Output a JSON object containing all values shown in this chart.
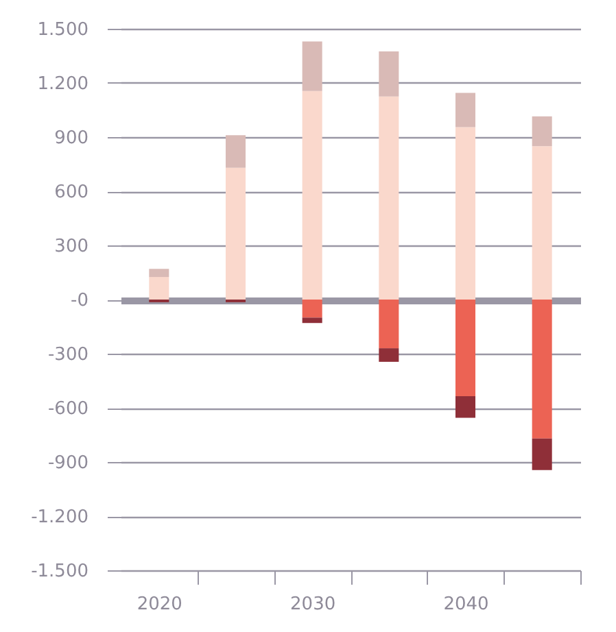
{
  "chart_data": {
    "type": "bar",
    "stacked": true,
    "categories": [
      "2020",
      null,
      "2030",
      null,
      "2040",
      null
    ],
    "series": [
      {
        "color": "#fad8cc",
        "values": [
          125,
          730,
          1155,
          1125,
          955,
          850
        ]
      },
      {
        "color": "#d9bab6",
        "values": [
          45,
          180,
          275,
          250,
          190,
          165
        ]
      },
      {
        "color": "#ec6354",
        "values": [
          0,
          0,
          -100,
          -270,
          -535,
          -770
        ]
      },
      {
        "color": "#8f2f38",
        "values": [
          -15,
          -15,
          -30,
          -75,
          -120,
          -175
        ]
      }
    ],
    "ylim": [
      -1500,
      1500
    ],
    "yticks": [
      {
        "value": -1500,
        "label": "-1.500"
      },
      {
        "value": -1200,
        "label": "-1.200"
      },
      -900,
      -600,
      -300,
      {
        "value": 0,
        "label": "-0"
      },
      300,
      600,
      900,
      {
        "value": 1200,
        "label": "1.200"
      },
      {
        "value": 1500,
        "label": "1.500"
      }
    ],
    "grid": "y",
    "legend": false
  }
}
